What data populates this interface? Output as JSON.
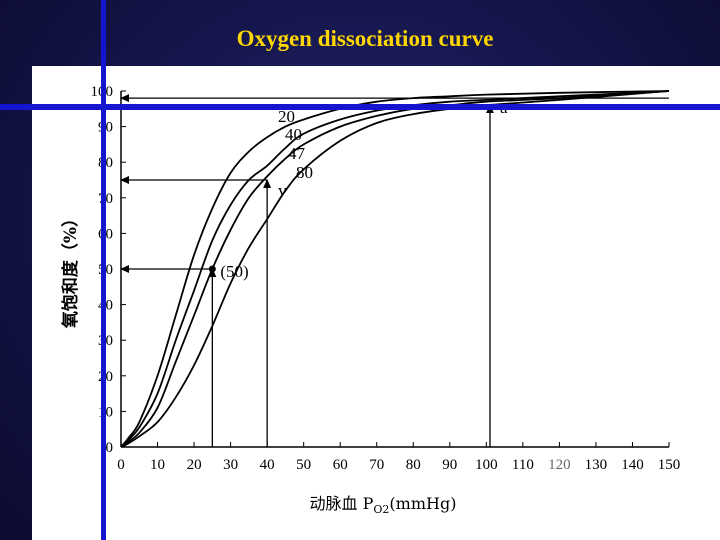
{
  "slide": {
    "title": "Oxygen dissociation curve",
    "accent_color": "#ffd700",
    "bar_color": "#1515cf"
  },
  "chart_data": {
    "type": "line",
    "title": "",
    "xlabel_main": "动脉血 P",
    "xlabel_sub": "O2",
    "xlabel_unit": "(mmHg)",
    "ylabel": "氧饱和度（%）",
    "xlim": [
      0,
      150
    ],
    "ylim": [
      0,
      100
    ],
    "x_ticks": [
      0,
      10,
      20,
      30,
      40,
      50,
      60,
      70,
      80,
      90,
      100,
      110,
      120,
      130,
      140,
      150
    ],
    "y_ticks": [
      0,
      10,
      20,
      30,
      40,
      50,
      60,
      70,
      80,
      90,
      100
    ],
    "grid": false,
    "series": [
      {
        "name": "20",
        "x": [
          0,
          2,
          5,
          10,
          15,
          20,
          25,
          30,
          35,
          40,
          45,
          50,
          60,
          70,
          80,
          90,
          100,
          120,
          150
        ],
        "y": [
          0,
          2.5,
          7,
          20,
          37,
          54,
          67,
          77,
          83,
          87,
          90,
          92,
          95,
          97,
          98,
          98.5,
          99,
          99.5,
          100
        ]
      },
      {
        "name": "40",
        "x": [
          0,
          2,
          5,
          10,
          15,
          20,
          25,
          30,
          35,
          40,
          45,
          50,
          60,
          70,
          80,
          90,
          100,
          120,
          150
        ],
        "y": [
          0,
          2,
          5.5,
          15,
          30,
          44,
          58,
          68,
          75,
          79,
          84,
          88,
          92,
          94.5,
          96,
          97,
          97.5,
          98.5,
          100
        ]
      },
      {
        "name": "47",
        "x": [
          0,
          2,
          5,
          10,
          15,
          20,
          25,
          30,
          35,
          40,
          45,
          50,
          60,
          70,
          80,
          90,
          100,
          120,
          150
        ],
        "y": [
          0,
          1.5,
          4,
          11,
          24,
          37,
          50,
          61,
          70,
          76,
          81,
          85,
          90,
          93,
          95,
          96,
          97,
          98,
          100
        ]
      },
      {
        "name": "80",
        "x": [
          0,
          2,
          5,
          10,
          15,
          20,
          25,
          30,
          35,
          40,
          45,
          50,
          60,
          70,
          80,
          90,
          100,
          120,
          150
        ],
        "y": [
          0,
          1,
          3,
          7,
          14,
          23,
          34,
          46,
          56,
          64,
          72,
          78,
          86,
          91,
          93.5,
          95,
          96,
          97.5,
          100
        ]
      }
    ],
    "reference_points": [
      {
        "label": "(50)",
        "x": 25,
        "y": 50
      },
      {
        "label": "v",
        "x": 40,
        "y": 75
      },
      {
        "label": "a",
        "x": 101,
        "y": 96
      }
    ],
    "arrows": [
      {
        "from": [
          25,
          0
        ],
        "to": [
          25,
          50
        ]
      },
      {
        "from": [
          25,
          50
        ],
        "to": [
          0,
          50
        ]
      },
      {
        "from": [
          40,
          0
        ],
        "to": [
          40,
          75
        ]
      },
      {
        "from": [
          40,
          75
        ],
        "to": [
          0,
          75
        ]
      },
      {
        "from": [
          101,
          0
        ],
        "to": [
          101,
          96
        ]
      },
      {
        "from": [
          150,
          98
        ],
        "to": [
          0,
          98
        ]
      }
    ]
  }
}
